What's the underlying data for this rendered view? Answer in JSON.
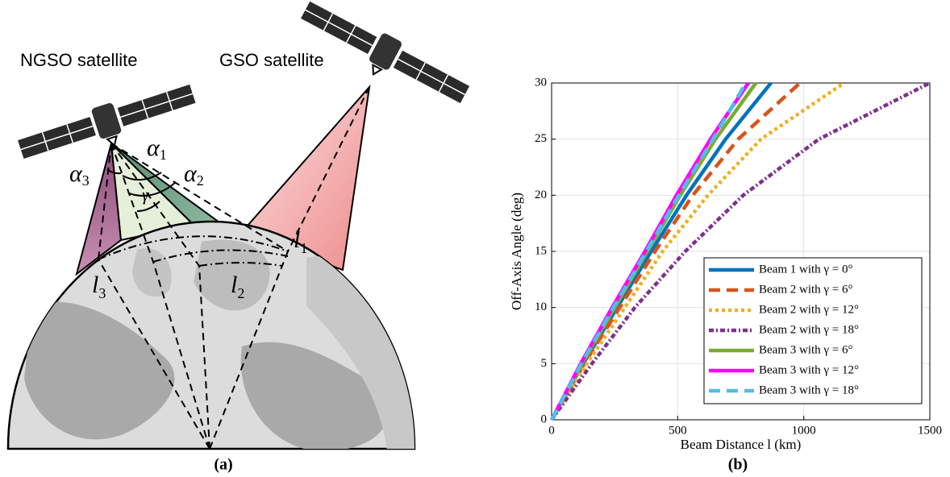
{
  "diagram": {
    "satellites": [
      "NGSO satellite",
      "GSO satellite"
    ],
    "angles": [
      {
        "symbol": "α",
        "sub": "1"
      },
      {
        "symbol": "α",
        "sub": "2"
      },
      {
        "symbol": "α",
        "sub": "3"
      },
      {
        "symbol": "γ"
      }
    ],
    "distances": [
      {
        "symbol": "l",
        "sub": "1"
      },
      {
        "symbol": "l",
        "sub": "2"
      },
      {
        "symbol": "l",
        "sub": "3"
      }
    ]
  },
  "captions": [
    "(a)",
    "(b)"
  ],
  "chart_data": {
    "type": "line",
    "xlabel": "Beam Distance l (km)",
    "ylabel": "Off-Axis Angle (deg)",
    "xlim": [
      0,
      1500
    ],
    "xticks": [
      0,
      500,
      1000,
      1500
    ],
    "ylim": [
      0,
      30
    ],
    "yticks": [
      0,
      5,
      10,
      15,
      20,
      25,
      30
    ],
    "grid": true,
    "legend": "lower right",
    "series": [
      {
        "name": "Beam 1 with γ = 0°",
        "color": "#0072bd",
        "linestyle": "solid",
        "x": [
          0,
          125,
          260,
          395,
          535,
          690,
          870
        ],
        "values": [
          0,
          5,
          10,
          15,
          20,
          25,
          30
        ]
      },
      {
        "name": "Beam 2 with γ = 6°",
        "color": "#d95319",
        "linestyle": "dashed",
        "x": [
          0,
          130,
          270,
          410,
          560,
          740,
          985
        ],
        "values": [
          0,
          5,
          10,
          15,
          20,
          25,
          30
        ]
      },
      {
        "name": "Beam 2 with γ = 12°",
        "color": "#edb120",
        "linestyle": "dotted",
        "x": [
          0,
          140,
          290,
          440,
          620,
          830,
          1160
        ],
        "values": [
          0,
          5,
          10,
          15,
          20,
          25,
          30
        ]
      },
      {
        "name": "Beam 2 with γ = 18°",
        "color": "#7e2f8e",
        "linestyle": "dash-dot",
        "x": [
          0,
          160,
          330,
          530,
          760,
          1060,
          1500
        ],
        "values": [
          0,
          5,
          10,
          15,
          20,
          25,
          30
        ]
      },
      {
        "name": "Beam 3 with γ = 6°",
        "color": "#77ac30",
        "linestyle": "solid",
        "x": [
          0,
          120,
          250,
          380,
          510,
          650,
          810
        ],
        "values": [
          0,
          5,
          10,
          15,
          20,
          25,
          30
        ]
      },
      {
        "name": "Beam 3 with γ = 12°",
        "color": "#ff00ff",
        "linestyle": "solid",
        "x": [
          0,
          115,
          240,
          370,
          495,
          630,
          780
        ],
        "values": [
          0,
          5,
          10,
          15,
          20,
          25,
          30
        ]
      },
      {
        "name": "Beam 3 with γ = 18°",
        "color": "#4dbeee",
        "linestyle": "dashed",
        "x": [
          0,
          118,
          245,
          375,
          505,
          640,
          770
        ],
        "values": [
          0,
          5,
          10,
          15,
          20,
          25,
          30
        ]
      }
    ]
  }
}
